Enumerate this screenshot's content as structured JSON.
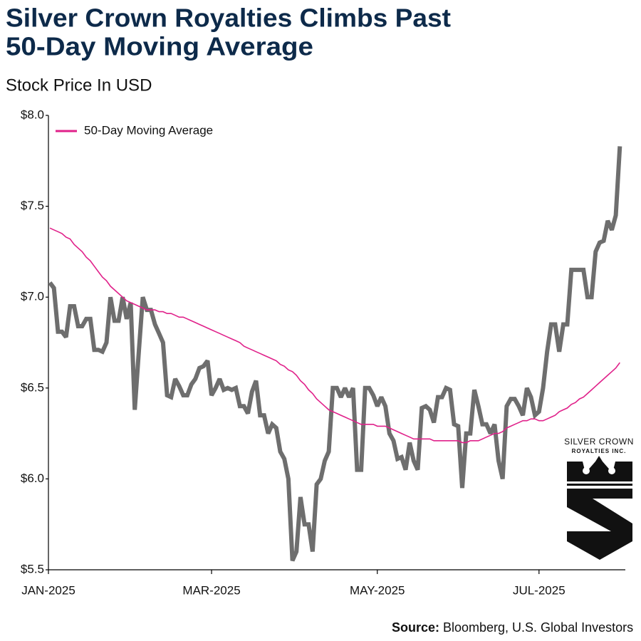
{
  "chart_data": {
    "type": "line",
    "title": [
      "Silver Crown Royalties Climbs Past",
      "50-Day Moving Average"
    ],
    "subtitle": "Stock Price In USD",
    "source_label": "Source:",
    "source": "Bloomberg, U.S. Global Investors",
    "logo_text": [
      "SILVER CROWN",
      "ROYALTIES INC."
    ],
    "xlim": [
      0,
      142
    ],
    "xticks": [
      {
        "value": 0,
        "label": "JAN-2025"
      },
      {
        "value": 40,
        "label": "MAR-2025"
      },
      {
        "value": 81,
        "label": "MAY-2025"
      },
      {
        "value": 121,
        "label": "JUL-2025"
      }
    ],
    "ylim": [
      5.5,
      8.0
    ],
    "yticks": [
      {
        "value": 5.5,
        "label": "$5.5"
      },
      {
        "value": 6.0,
        "label": "$6.0"
      },
      {
        "value": 6.5,
        "label": "$6.5"
      },
      {
        "value": 7.0,
        "label": "$7.0"
      },
      {
        "value": 7.5,
        "label": "$7.5"
      },
      {
        "value": 8.0,
        "label": "$8.0"
      }
    ],
    "grid": false,
    "legend": "top-left",
    "series": [
      {
        "color": "#6e6e6e",
        "width": 6,
        "values": [
          7.08,
          7.05,
          6.81,
          6.81,
          6.78,
          6.95,
          6.95,
          6.84,
          6.84,
          6.88,
          6.88,
          6.71,
          6.71,
          6.7,
          6.75,
          7.0,
          6.87,
          6.87,
          7.0,
          6.88,
          6.97,
          6.38,
          6.7,
          7.0,
          6.93,
          6.93,
          6.85,
          6.8,
          6.75,
          6.46,
          6.45,
          6.55,
          6.51,
          6.46,
          6.46,
          6.52,
          6.55,
          6.61,
          6.62,
          6.65,
          6.46,
          6.5,
          6.55,
          6.49,
          6.5,
          6.49,
          6.5,
          6.4,
          6.4,
          6.36,
          6.48,
          6.54,
          6.35,
          6.35,
          6.25,
          6.3,
          6.28,
          6.15,
          6.11,
          6.0,
          5.55,
          5.6,
          5.9,
          5.75,
          5.75,
          5.6,
          5.97,
          6.0,
          6.1,
          6.15,
          6.5,
          6.5,
          6.45,
          6.5,
          6.45,
          6.5,
          6.05,
          6.05,
          6.5,
          6.5,
          6.46,
          6.4,
          6.45,
          6.4,
          6.25,
          6.21,
          6.11,
          6.12,
          6.05,
          6.2,
          6.1,
          6.05,
          6.39,
          6.4,
          6.38,
          6.31,
          6.45,
          6.45,
          6.5,
          6.49,
          6.3,
          6.29,
          5.95,
          6.25,
          6.25,
          6.49,
          6.4,
          6.3,
          6.3,
          6.25,
          6.3,
          6.1,
          6.0,
          6.4,
          6.44,
          6.44,
          6.4,
          6.35,
          6.5,
          6.45,
          6.35,
          6.37,
          6.5,
          6.7,
          6.85,
          6.85,
          6.7,
          6.85,
          6.85,
          7.15,
          7.15,
          7.15,
          7.15,
          7.0,
          7.0,
          7.25,
          7.3,
          7.31,
          7.42,
          7.37,
          7.45,
          7.83
        ]
      },
      {
        "name": "50-Day Moving Average",
        "color": "#e0218a",
        "width": 1.6,
        "values": [
          7.38,
          7.37,
          7.36,
          7.35,
          7.33,
          7.32,
          7.29,
          7.27,
          7.25,
          7.22,
          7.2,
          7.17,
          7.14,
          7.11,
          7.09,
          7.06,
          7.04,
          7.02,
          7.0,
          6.98,
          6.97,
          6.96,
          6.95,
          6.94,
          6.93,
          6.93,
          6.93,
          6.92,
          6.92,
          6.91,
          6.91,
          6.9,
          6.89,
          6.89,
          6.88,
          6.87,
          6.86,
          6.85,
          6.84,
          6.83,
          6.82,
          6.81,
          6.8,
          6.79,
          6.78,
          6.77,
          6.76,
          6.75,
          6.73,
          6.72,
          6.71,
          6.7,
          6.69,
          6.68,
          6.67,
          6.66,
          6.65,
          6.63,
          6.62,
          6.6,
          6.59,
          6.57,
          6.54,
          6.52,
          6.49,
          6.47,
          6.44,
          6.42,
          6.4,
          6.38,
          6.37,
          6.36,
          6.35,
          6.34,
          6.33,
          6.32,
          6.31,
          6.3,
          6.3,
          6.3,
          6.3,
          6.29,
          6.29,
          6.29,
          6.28,
          6.27,
          6.26,
          6.25,
          6.24,
          6.23,
          6.22,
          6.22,
          6.22,
          6.22,
          6.22,
          6.21,
          6.21,
          6.21,
          6.21,
          6.21,
          6.21,
          6.21,
          6.2,
          6.2,
          6.21,
          6.21,
          6.21,
          6.22,
          6.23,
          6.24,
          6.25,
          6.25,
          6.26,
          6.28,
          6.29,
          6.3,
          6.31,
          6.32,
          6.32,
          6.33,
          6.33,
          6.32,
          6.32,
          6.33,
          6.34,
          6.35,
          6.37,
          6.38,
          6.39,
          6.41,
          6.42,
          6.44,
          6.45,
          6.47,
          6.49,
          6.51,
          6.53,
          6.55,
          6.57,
          6.59,
          6.61,
          6.64
        ]
      }
    ]
  }
}
